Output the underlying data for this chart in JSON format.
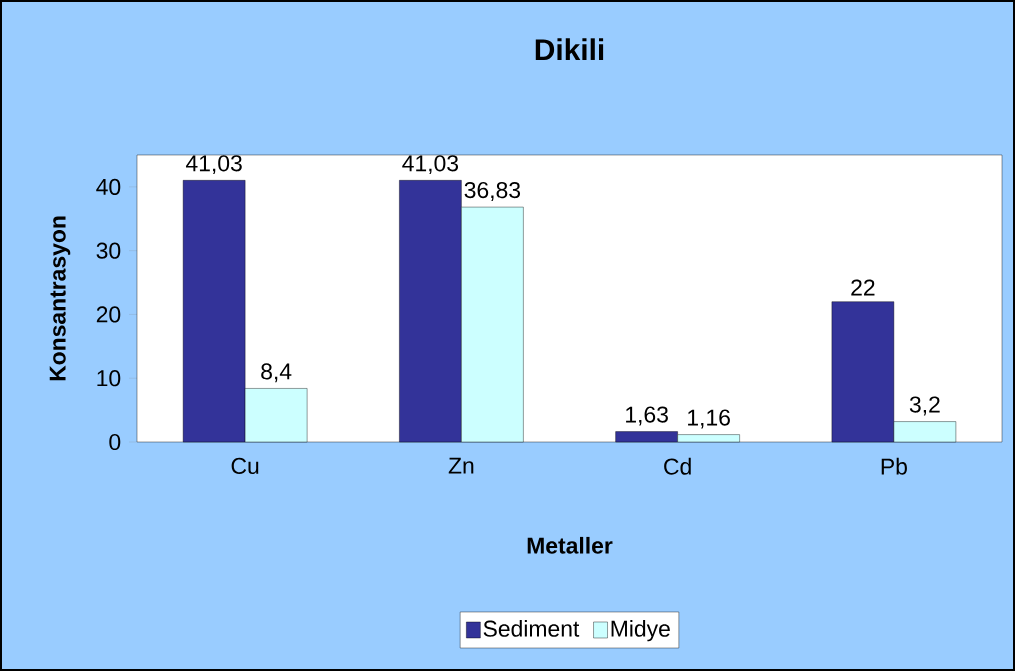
{
  "chart_data": {
    "type": "bar",
    "title": "Dikili",
    "xlabel": "Metaller",
    "ylabel": "Konsantrasyon",
    "categories": [
      "Cu",
      "Zn",
      "Cd",
      "Pb"
    ],
    "series": [
      {
        "name": "Sediment",
        "color": "#333399",
        "values": [
          41.03,
          41.03,
          1.63,
          22
        ],
        "value_labels": [
          "41,03",
          "41,03",
          "1,63",
          "22"
        ]
      },
      {
        "name": "Midye",
        "color": "#ccffff",
        "values": [
          8.4,
          36.83,
          1.16,
          3.2
        ],
        "value_labels": [
          "8,4",
          "36,83",
          "1,16",
          "3,2"
        ]
      }
    ],
    "ylim": [
      0,
      45
    ],
    "yticks": [
      0,
      10,
      20,
      30,
      40
    ],
    "legend": "bottom"
  }
}
